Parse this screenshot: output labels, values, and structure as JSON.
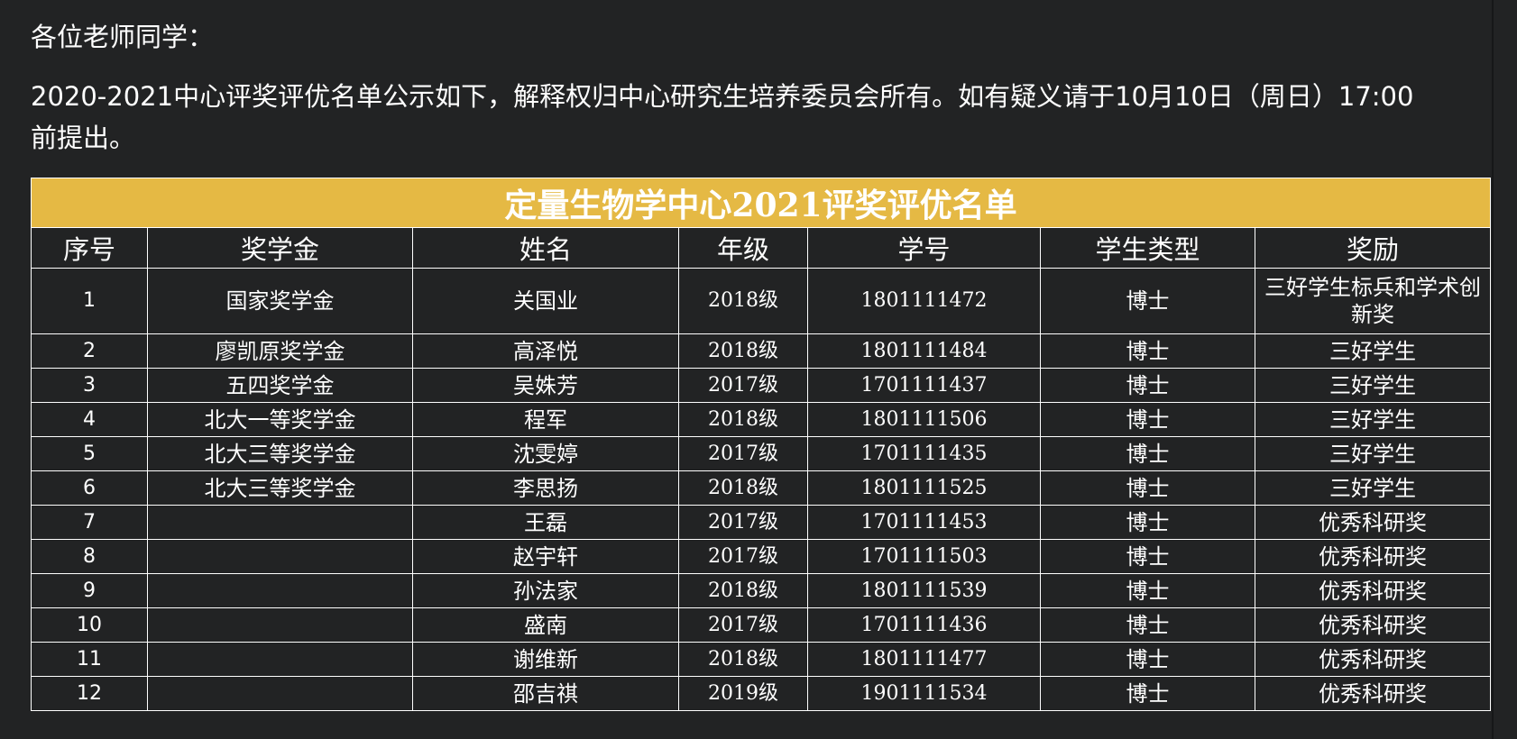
{
  "document": {
    "greeting": "各位老师同学：",
    "notice": "2020-2021中心评奖评优名单公示如下，解释权归中心研究生培养委员会所有。如有疑义请于10月10日（周日）17:00前提出。"
  },
  "table": {
    "title": "定量生物学中心2021评奖评优名单",
    "header_color": "#e5b944",
    "columns": [
      "序号",
      "奖学金",
      "姓名",
      "年级",
      "学号",
      "学生类型",
      "奖励"
    ],
    "rows": [
      [
        "1",
        "国家奖学金",
        "关国业",
        "2018级",
        "1801111472",
        "博士",
        "三好学生标兵和学术创新奖"
      ],
      [
        "2",
        "廖凯原奖学金",
        "高泽悦",
        "2018级",
        "1801111484",
        "博士",
        "三好学生"
      ],
      [
        "3",
        "五四奖学金",
        "吴姝芳",
        "2017级",
        "1701111437",
        "博士",
        "三好学生"
      ],
      [
        "4",
        "北大一等奖学金",
        "程军",
        "2018级",
        "1801111506",
        "博士",
        "三好学生"
      ],
      [
        "5",
        "北大三等奖学金",
        "沈雯婷",
        "2017级",
        "1701111435",
        "博士",
        "三好学生"
      ],
      [
        "6",
        "北大三等奖学金",
        "李思扬",
        "2018级",
        "1801111525",
        "博士",
        "三好学生"
      ],
      [
        "7",
        "",
        "王磊",
        "2017级",
        "1701111453",
        "博士",
        "优秀科研奖"
      ],
      [
        "8",
        "",
        "赵宇轩",
        "2017级",
        "1701111503",
        "博士",
        "优秀科研奖"
      ],
      [
        "9",
        "",
        "孙法家",
        "2018级",
        "1801111539",
        "博士",
        "优秀科研奖"
      ],
      [
        "10",
        "",
        "盛南",
        "2017级",
        "1701111436",
        "博士",
        "优秀科研奖"
      ],
      [
        "11",
        "",
        "谢维新",
        "2018级",
        "1801111477",
        "博士",
        "优秀科研奖"
      ],
      [
        "12",
        "",
        "邵吉祺",
        "2019级",
        "1901111534",
        "博士",
        "优秀科研奖"
      ]
    ]
  }
}
